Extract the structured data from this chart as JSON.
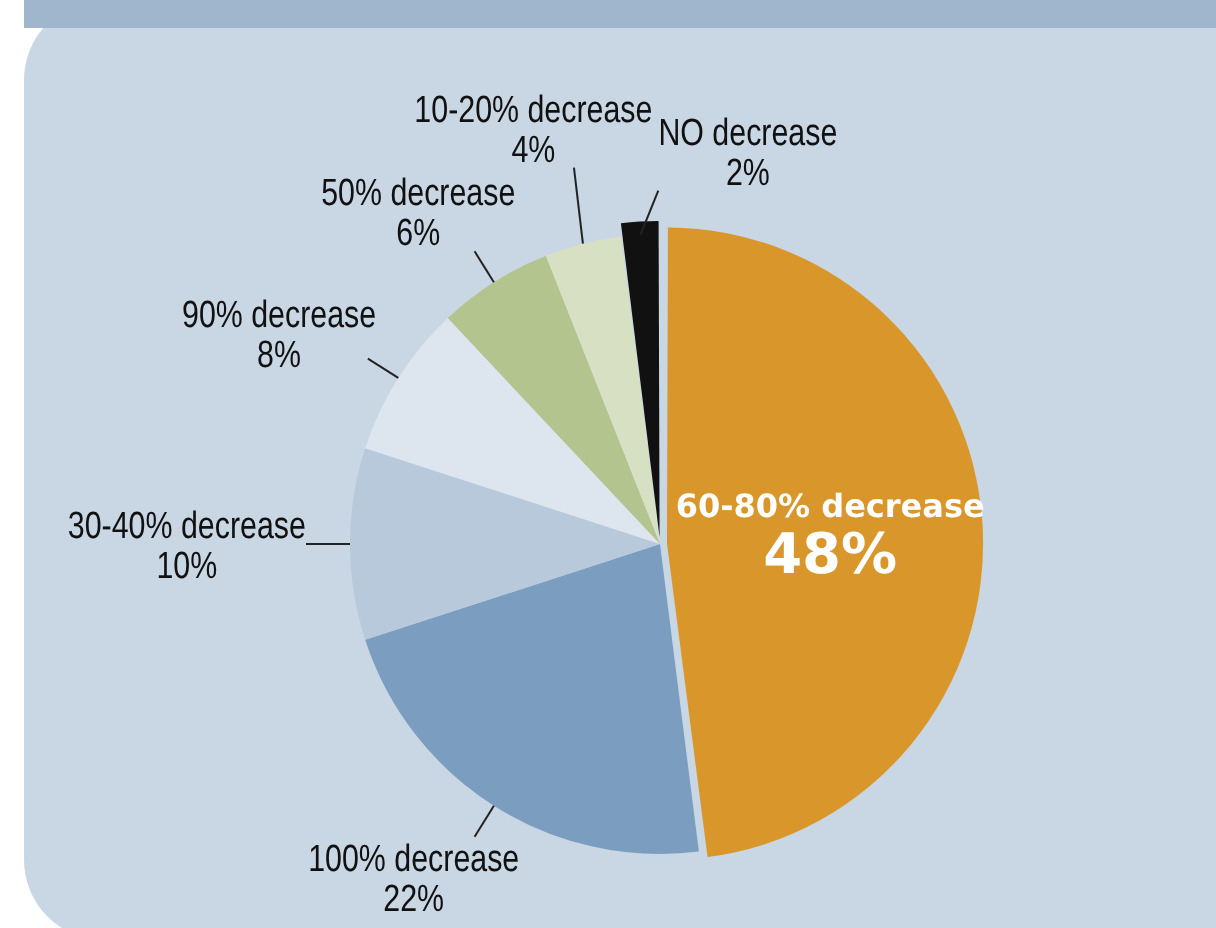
{
  "chart_data": {
    "type": "pie",
    "categories": [
      "60-80% decrease",
      "100% decrease",
      "30-40% decrease",
      "90% decrease",
      "50% decrease",
      "10-20% decrease",
      "NO decrease"
    ],
    "values": [
      48,
      22,
      10,
      8,
      6,
      4,
      2
    ],
    "colors": [
      "#d9962a",
      "#7b9dbf",
      "#b8c9dc",
      "#dde5ee",
      "#b4c48e",
      "#d8e0c4",
      "#111111"
    ],
    "value_labels": [
      "48%",
      "22%",
      "10%",
      "8%",
      "6%",
      "4%",
      "2%"
    ],
    "legend": false
  }
}
